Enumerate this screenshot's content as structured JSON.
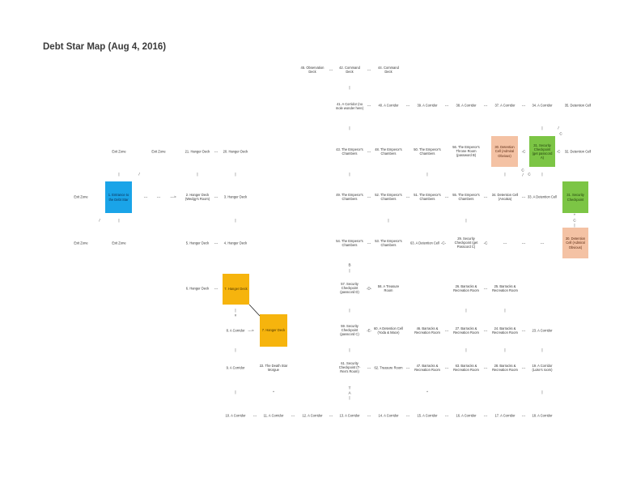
{
  "title": "Debt Star Map (Aug 4, 2016)",
  "nodes": {
    "n45": "45. Observation Deck",
    "n42": "42. Command Deck",
    "n44": "44. Command Deck",
    "n41": "41. A Corridor (no mole wonder here)",
    "n40": "40. A Corridor",
    "n39": "39. A Corridor",
    "n38": "38. A Corridor",
    "n37": "37. A Corridor",
    "n34": "34. A Corridor",
    "n35": "35. Detention Cell",
    "n43": "43. The Emperor's Chambers",
    "n48": "48. The Emperor's Chambers",
    "n50": "50. The Emperor's Chambers",
    "n56": "56. The Emperor's Throne Room (password B)",
    "n32": "32. Detention Cell",
    "exit1": "Exit Zone",
    "exit2": "Exit Zone",
    "n21": "21. Hanger Deck",
    "n20": "20. Hanger Deck",
    "exit3": "Exit Zone",
    "n2": "2. Hanger Deck (Wedgy's Room)",
    "n3": "3. Hanger Deck",
    "n49": "49. The Emperor's Chambers",
    "n52": "52. The Emperor's Chambers",
    "n51": "51. The Emperor's Chambers",
    "n55": "55. The Emperor's Chambers",
    "n34b": "34. Detention Cell (Ancaka)",
    "n33": "33. A Detention Cell",
    "exit4": "Exit Zone",
    "exit5": "Exit Zone",
    "n5": "5. Hanger Deck",
    "n4": "4. Hanger Deck",
    "n54": "54. The Emperor's Chambers",
    "n53": "53. The Emperor's Chambers",
    "n63": "63. A Detention Cell",
    "n29": "29. Security Checkpoint (get Passcord C)",
    "n6": "6. Hanger Deck",
    "n57": "57. Security Checkpoint (passcord D)",
    "n58": "58. A Treasure Room",
    "n26": "26. Barracks & Recreation Room",
    "n25": "25. Barracks & Recreation Room",
    "n8": "8. A Corridor",
    "n59": "59. Security Checkpoint (passcord C)",
    "n60": "60. A Detention Cell (Yoda & Mace)",
    "n46": "46. Barracks & Recreation Room",
    "n27": "27. Barracks & Recreation Room",
    "n24": "24. Barracks & Recreation Room",
    "n23": "23. A Corridor",
    "n9": "9. A Corridor",
    "n22": "22. The Death Star Morgue",
    "n61": "61. Security Checkpoint (T-Rex's Room)",
    "n62": "62. Treasure Room",
    "n47": "47. Barracks & Recreation Room",
    "n63b": "63. Barracks & Recreation Room",
    "n28": "28. Barracks & Recreation Room",
    "n26b": "26. Barracks & Recreation Room",
    "n19": "19. A Corridor (Luke's room)",
    "n10": "10. A Corridor",
    "n11": "11. A Corridor",
    "n12": "12. A Corridor",
    "n13": "13. A Corridor",
    "n14": "14. A Corridor",
    "n15": "15. A Corridor",
    "n16": "16. A Corridor",
    "n17": "17. A Corridor",
    "n18": "18. A Corridor"
  },
  "boxes": {
    "b1": "1. Entrance to the Debt Star",
    "b7a": "7. Hanger Deck",
    "b7b": "7. Hanger Deck",
    "b31a": "31. Security Checkpoint (get passcord A)",
    "b31b": "31. Security Checkpoint",
    "b30a": "30. Detention Cell (Admiral Obvious)",
    "b30b": "30. Detention Cell (Admiral Obvious)"
  },
  "box_colors": {
    "blue": "#1aa4e8",
    "orange": "#f6b40d",
    "green": "#7cc545",
    "salmon": "#f4c2a4"
  },
  "connectors": {
    "dash": "---",
    "bar": "|",
    "slash": "/",
    "arrow": "--->",
    "bar_n": "|",
    "c": "C",
    "b": "B",
    "d": "-D-",
    "e": "-E-",
    "cc": "-C-",
    "ccl": "-C",
    "v": "v",
    "star": "*",
    "plus": "+",
    "a": "A",
    "t": "T"
  }
}
